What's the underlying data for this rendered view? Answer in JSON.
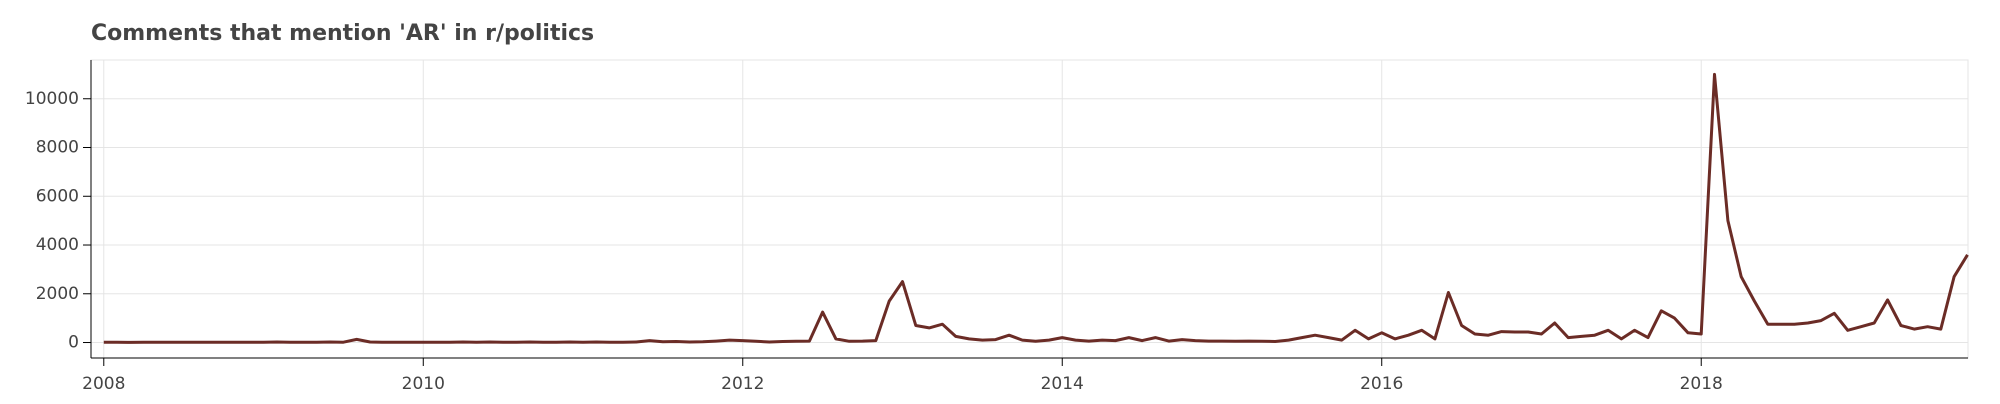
{
  "chart_data": {
    "type": "line",
    "title": "Comments that mention 'AR' in r/politics",
    "x": [
      2008,
      2008.083,
      2008.167,
      2008.25,
      2008.333,
      2008.417,
      2008.5,
      2008.583,
      2008.667,
      2008.75,
      2008.833,
      2008.917,
      2009,
      2009.083,
      2009.167,
      2009.25,
      2009.333,
      2009.417,
      2009.5,
      2009.583,
      2009.667,
      2009.75,
      2009.833,
      2009.917,
      2010,
      2010.083,
      2010.167,
      2010.25,
      2010.333,
      2010.417,
      2010.5,
      2010.583,
      2010.667,
      2010.75,
      2010.833,
      2010.917,
      2011,
      2011.083,
      2011.167,
      2011.25,
      2011.333,
      2011.417,
      2011.5,
      2011.583,
      2011.667,
      2011.75,
      2011.833,
      2011.917,
      2012,
      2012.083,
      2012.167,
      2012.25,
      2012.333,
      2012.417,
      2012.5,
      2012.583,
      2012.667,
      2012.75,
      2012.833,
      2012.917,
      2013,
      2013.083,
      2013.167,
      2013.25,
      2013.333,
      2013.417,
      2013.5,
      2013.583,
      2013.667,
      2013.75,
      2013.833,
      2013.917,
      2014,
      2014.083,
      2014.167,
      2014.25,
      2014.333,
      2014.417,
      2014.5,
      2014.583,
      2014.667,
      2014.75,
      2014.833,
      2014.917,
      2015,
      2015.083,
      2015.167,
      2015.25,
      2015.333,
      2015.417,
      2015.5,
      2015.583,
      2015.667,
      2015.75,
      2015.833,
      2015.917,
      2016,
      2016.083,
      2016.167,
      2016.25,
      2016.333,
      2016.417,
      2016.5,
      2016.583,
      2016.667,
      2016.75,
      2016.833,
      2016.917,
      2017,
      2017.083,
      2017.167,
      2017.25,
      2017.333,
      2017.417,
      2017.5,
      2017.583,
      2017.667,
      2017.75,
      2017.833,
      2017.917,
      2018,
      2018.083,
      2018.167,
      2018.25,
      2018.333,
      2018.417,
      2018.5,
      2018.583,
      2018.667,
      2018.75,
      2018.833,
      2018.917,
      2019,
      2019.083,
      2019.167,
      2019.25,
      2019.333,
      2019.417,
      2019.5,
      2019.583,
      2019.667
    ],
    "series": [
      {
        "color": "#6b2c26",
        "values": [
          10,
          10,
          5,
          10,
          15,
          10,
          15,
          10,
          10,
          15,
          10,
          10,
          10,
          20,
          10,
          15,
          10,
          20,
          15,
          130,
          20,
          10,
          10,
          10,
          10,
          15,
          10,
          20,
          15,
          20,
          15,
          10,
          20,
          15,
          10,
          20,
          15,
          20,
          10,
          15,
          20,
          80,
          30,
          40,
          20,
          30,
          60,
          100,
          80,
          50,
          20,
          40,
          50,
          60,
          1250,
          150,
          50,
          60,
          80,
          1700,
          2500,
          700,
          600,
          750,
          250,
          150,
          100,
          120,
          300,
          100,
          50,
          100,
          200,
          100,
          60,
          100,
          80,
          200,
          80,
          200,
          60,
          120,
          80,
          60,
          60,
          50,
          60,
          50,
          40,
          100,
          200,
          300,
          200,
          100,
          500,
          150,
          400,
          150,
          300,
          500,
          150,
          2050,
          700,
          350,
          300,
          450,
          430,
          430,
          350,
          800,
          200,
          250,
          300,
          500,
          150,
          500,
          200,
          1300,
          1000,
          400,
          350,
          11000,
          5000,
          2700,
          1700,
          750,
          750,
          750,
          800,
          900,
          1200,
          500,
          650,
          800,
          1750,
          700,
          550,
          650,
          550,
          2700,
          3600
        ]
      }
    ],
    "xlim": [
      2007.92,
      2019.67
    ],
    "xticks": [
      2008,
      2010,
      2012,
      2014,
      2016,
      2018
    ],
    "ylim": [
      -635,
      11590
    ],
    "yticks": [
      0,
      2000,
      4000,
      6000,
      8000,
      10000
    ],
    "grid": true
  }
}
